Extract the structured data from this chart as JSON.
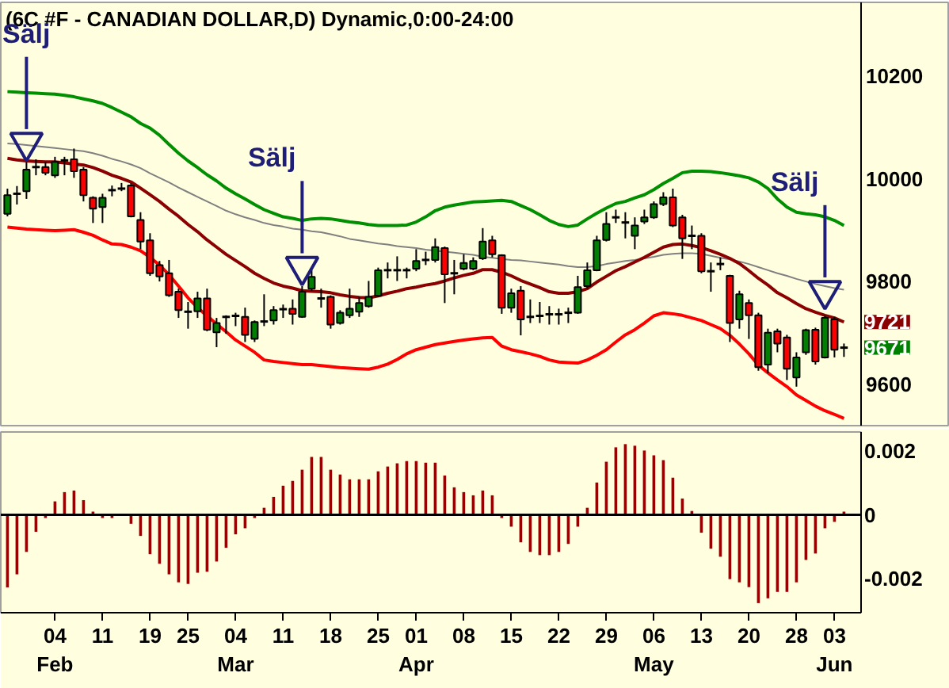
{
  "chart_data": [
    {
      "type": "candlestick",
      "title": "(6C #F - CANADIAN DOLLAR,D) Dynamic,0:00-24:00",
      "categories": [
        null,
        null,
        null,
        null,
        null,
        null,
        null,
        null,
        null,
        null,
        null,
        null,
        null,
        null,
        null,
        null,
        null,
        null,
        null,
        null,
        null,
        null,
        null,
        null,
        null,
        null,
        null,
        null,
        null,
        null,
        null,
        null,
        null,
        null,
        null,
        null,
        null,
        null,
        null,
        null,
        null,
        null,
        null,
        null,
        null,
        null,
        null,
        null,
        null,
        null,
        null,
        null,
        null,
        null,
        null,
        null,
        null,
        null,
        null,
        null,
        null,
        null,
        null,
        null,
        null,
        null,
        null,
        null,
        null,
        null,
        null,
        null,
        null,
        null,
        null,
        null,
        null,
        null,
        null,
        null,
        null,
        null,
        null,
        null,
        null,
        null,
        null,
        null,
        null
      ],
      "ohlc": [
        [
          9932,
          9981,
          9927,
          9968
        ],
        [
          9971,
          9986,
          9950,
          9971
        ],
        [
          9976,
          10033,
          9961,
          10018
        ],
        [
          10023,
          10038,
          10007,
          10023
        ],
        [
          10023,
          10033,
          10007,
          10012
        ],
        [
          10007,
          10043,
          10002,
          10033
        ],
        [
          10036,
          10043,
          10007,
          10036
        ],
        [
          10038,
          10059,
          10002,
          10015
        ],
        [
          10018,
          10023,
          9956,
          9968
        ],
        [
          9963,
          9966,
          9914,
          9942
        ],
        [
          9945,
          9971,
          9914,
          9963
        ],
        [
          9978,
          9987,
          9966,
          9978
        ],
        [
          9981,
          9992,
          9976,
          9981
        ],
        [
          9987,
          9992,
          9925,
          9927
        ],
        [
          9920,
          9935,
          9863,
          9878
        ],
        [
          9880,
          9894,
          9811,
          9816
        ],
        [
          9832,
          9840,
          9800,
          9810
        ],
        [
          9816,
          9842,
          9770,
          9773
        ],
        [
          9780,
          9786,
          9729,
          9744
        ],
        [
          9741,
          9760,
          9708,
          9741
        ],
        [
          9742,
          9780,
          9729,
          9767
        ],
        [
          9767,
          9786,
          9703,
          9706
        ],
        [
          9701,
          9729,
          9672,
          9719
        ],
        [
          9731,
          9734,
          9698,
          9731
        ],
        [
          9733,
          9739,
          9713,
          9733
        ],
        [
          9731,
          9749,
          9682,
          9696
        ],
        [
          9688,
          9724,
          9682,
          9721
        ],
        [
          9722,
          9775,
          9713,
          9722
        ],
        [
          9724,
          9752,
          9716,
          9744
        ],
        [
          9746,
          9755,
          9729,
          9746
        ],
        [
          9747,
          9765,
          9716,
          9737
        ],
        [
          9731,
          9791,
          9729,
          9780
        ],
        [
          9786,
          9822,
          9782,
          9809
        ],
        [
          9767,
          9786,
          9749,
          9767
        ],
        [
          9770,
          9773,
          9708,
          9716
        ],
        [
          9719,
          9744,
          9716,
          9739
        ],
        [
          9734,
          9786,
          9729,
          9747
        ],
        [
          9741,
          9770,
          9731,
          9758
        ],
        [
          9752,
          9801,
          9749,
          9770
        ],
        [
          9772,
          9827,
          9770,
          9822
        ],
        [
          9822,
          9837,
          9806,
          9822
        ],
        [
          9822,
          9849,
          9801,
          9822
        ],
        [
          9822,
          9827,
          9806,
          9822
        ],
        [
          9825,
          9863,
          9820,
          9840
        ],
        [
          9842,
          9858,
          9832,
          9842
        ],
        [
          9842,
          9884,
          9837,
          9867
        ],
        [
          9865,
          9868,
          9758,
          9814
        ],
        [
          9816,
          9842,
          9775,
          9816
        ],
        [
          9825,
          9853,
          9822,
          9836
        ],
        [
          9825,
          9847,
          9822,
          9840
        ],
        [
          9845,
          9904,
          9842,
          9878
        ],
        [
          9880,
          9889,
          9847,
          9853
        ],
        [
          9851,
          9853,
          9737,
          9749
        ],
        [
          9749,
          9786,
          9739,
          9777
        ],
        [
          9782,
          9791,
          9695,
          9726
        ],
        [
          9731,
          9765,
          9719,
          9731
        ],
        [
          9733,
          9760,
          9719,
          9733
        ],
        [
          9736,
          9752,
          9716,
          9736
        ],
        [
          9736,
          9747,
          9716,
          9736
        ],
        [
          9739,
          9749,
          9719,
          9739
        ],
        [
          9739,
          9811,
          9737,
          9789
        ],
        [
          9791,
          9837,
          9786,
          9822
        ],
        [
          9822,
          9889,
          9820,
          9880
        ],
        [
          9881,
          9935,
          9878,
          9912
        ],
        [
          9925,
          9940,
          9914,
          9925
        ],
        [
          9915,
          9935,
          9884,
          9915
        ],
        [
          9889,
          9925,
          9863,
          9909
        ],
        [
          9917,
          9940,
          9912,
          9925
        ],
        [
          9925,
          9956,
          9922,
          9951
        ],
        [
          9951,
          9974,
          9947,
          9964
        ],
        [
          9964,
          9981,
          9906,
          9909
        ],
        [
          9925,
          9930,
          9844,
          9884
        ],
        [
          9889,
          9909,
          9863,
          9889
        ],
        [
          9889,
          9894,
          9816,
          9820
        ],
        [
          9820,
          9837,
          9780,
          9820
        ],
        [
          9834,
          9847,
          9822,
          9834
        ],
        [
          9811,
          9813,
          9682,
          9719
        ],
        [
          9726,
          9782,
          9708,
          9775
        ],
        [
          9758,
          9765,
          9688,
          9734
        ],
        [
          9734,
          9739,
          9626,
          9633
        ],
        [
          9638,
          9708,
          9621,
          9700
        ],
        [
          9703,
          9708,
          9662,
          9679
        ],
        [
          9691,
          9696,
          9608,
          9630
        ],
        [
          9613,
          9662,
          9595,
          9652
        ],
        [
          9662,
          9708,
          9657,
          9705
        ],
        [
          9706,
          9710,
          9638,
          9644
        ],
        [
          9652,
          9734,
          9650,
          9729
        ],
        [
          9726,
          9731,
          9652,
          9667
        ],
        [
          9671,
          9679,
          9653,
          9671
        ]
      ],
      "colors": [
        "#008000",
        "#000000",
        "#008000",
        "#000000",
        "#ff0000",
        "#008000",
        "#000000",
        "#ff0000",
        "#ff0000",
        "#ff0000",
        "#008000",
        "#000000",
        "#000000",
        "#ff0000",
        "#ff0000",
        "#ff0000",
        "#ff0000",
        "#ff0000",
        "#ff0000",
        "#000000",
        "#008000",
        "#ff0000",
        "#008000",
        "#000000",
        "#000000",
        "#ff0000",
        "#008000",
        "#000000",
        "#008000",
        "#000000",
        "#ff0000",
        "#008000",
        "#008000",
        "#000000",
        "#ff0000",
        "#008000",
        "#008000",
        "#008000",
        "#008000",
        "#008000",
        "#000000",
        "#000000",
        "#000000",
        "#008000",
        "#000000",
        "#008000",
        "#ff0000",
        "#000000",
        "#008000",
        "#008000",
        "#008000",
        "#ff0000",
        "#ff0000",
        "#008000",
        "#ff0000",
        "#000000",
        "#000000",
        "#000000",
        "#000000",
        "#000000",
        "#008000",
        "#008000",
        "#008000",
        "#008000",
        "#000000",
        "#000000",
        "#008000",
        "#008000",
        "#008000",
        "#008000",
        "#ff0000",
        "#ff0000",
        "#000000",
        "#ff0000",
        "#000000",
        "#000000",
        "#ff0000",
        "#008000",
        "#ff0000",
        "#ff0000",
        "#008000",
        "#ff0000",
        "#ff0000",
        "#008000",
        "#008000",
        "#ff0000",
        "#008000",
        "#ff0000",
        "#000000"
      ],
      "value_labels": [
        null,
        null,
        null,
        null,
        null,
        null,
        null,
        null,
        null,
        null,
        null,
        null,
        null,
        null,
        null,
        null,
        null,
        null,
        null,
        null,
        null,
        null,
        null,
        null,
        null,
        null,
        null,
        null,
        null,
        null,
        null,
        null,
        null,
        null,
        null,
        null,
        null,
        null,
        null,
        null,
        null,
        null,
        null,
        null,
        null,
        null,
        null,
        null,
        null,
        null,
        null,
        null,
        null,
        null,
        null,
        null,
        null,
        null,
        null,
        null,
        null,
        null,
        null,
        null,
        null,
        null,
        null,
        null,
        null,
        null,
        null,
        null,
        null,
        null,
        null,
        null,
        null,
        null,
        null,
        null,
        null,
        null,
        null,
        null,
        null,
        null,
        null,
        null,
        "9671"
      ],
      "series": [
        {
          "type": "line",
          "color": "#008f00",
          "values": [
            10170,
            10169,
            10168,
            10167,
            10166,
            10165,
            10163,
            10160,
            10156,
            10152,
            10147,
            10139,
            10130,
            10121,
            10108,
            10099,
            10085,
            10067,
            10050,
            10035,
            10022,
            10008,
            9996,
            9982,
            9971,
            9961,
            9950,
            9940,
            9933,
            9926,
            9923,
            9919,
            9922,
            9923,
            9922,
            9919,
            9916,
            9914,
            9911,
            9909,
            9909,
            9909,
            9910,
            9916,
            9926,
            9938,
            9945,
            9949,
            9952,
            9955,
            9956,
            9957,
            9958,
            9956,
            9948,
            9940,
            9930,
            9919,
            9911,
            9907,
            9910,
            9922,
            9933,
            9943,
            9952,
            9956,
            9963,
            9969,
            9979,
            9991,
            10001,
            10012,
            10015,
            10015,
            10014,
            10012,
            10009,
            10006,
            10002,
            9994,
            9981,
            9961,
            9945,
            9935,
            9932,
            9930,
            9926,
            9919,
            9909
          ]
        },
        {
          "type": "line",
          "color": "#808080",
          "values": [
            10069,
            10068,
            10066,
            10064,
            10062,
            10060,
            10058,
            10056,
            10054,
            10050,
            10045,
            10039,
            10034,
            10028,
            10021,
            10011,
            10002,
            9993,
            9983,
            9974,
            9965,
            9956,
            9947,
            9938,
            9931,
            9925,
            9920,
            9914,
            9910,
            9907,
            9903,
            9901,
            9898,
            9896,
            9892,
            9888,
            9883,
            9880,
            9877,
            9874,
            9872,
            9869,
            9867,
            9865,
            9862,
            9860,
            9858,
            9856,
            9854,
            9852,
            9848,
            9846,
            9844,
            9842,
            9841,
            9839,
            9837,
            9835,
            9833,
            9830,
            9828,
            9828,
            9830,
            9834,
            9837,
            9840,
            9842,
            9845,
            9848,
            9852,
            9854,
            9855,
            9855,
            9854,
            9850,
            9846,
            9843,
            9839,
            9834,
            9828,
            9822,
            9816,
            9811,
            9805,
            9800,
            9795,
            9791,
            9787,
            9784
          ]
        },
        {
          "type": "line",
          "color": "#8b0000",
          "values": [
            10040,
            10037,
            10035,
            10034,
            10033,
            10033,
            10031,
            10029,
            10027,
            10022,
            10015,
            10007,
            10001,
            9994,
            9982,
            9969,
            9956,
            9941,
            9927,
            9911,
            9897,
            9881,
            9867,
            9853,
            9841,
            9829,
            9816,
            9806,
            9797,
            9791,
            9787,
            9782,
            9781,
            9780,
            9778,
            9774,
            9771,
            9769,
            9768,
            9772,
            9777,
            9781,
            9786,
            9789,
            9793,
            9796,
            9801,
            9807,
            9812,
            9816,
            9823,
            9823,
            9818,
            9811,
            9802,
            9795,
            9788,
            9780,
            9777,
            9777,
            9780,
            9786,
            9799,
            9810,
            9821,
            9829,
            9838,
            9847,
            9857,
            9867,
            9872,
            9873,
            9870,
            9866,
            9860,
            9853,
            9845,
            9835,
            9821,
            9806,
            9793,
            9778,
            9768,
            9757,
            9747,
            9740,
            9734,
            9729,
            9721
          ],
          "value_labels": [
            null,
            null,
            null,
            null,
            null,
            null,
            null,
            null,
            null,
            null,
            null,
            null,
            null,
            null,
            null,
            null,
            null,
            null,
            null,
            null,
            null,
            null,
            null,
            null,
            null,
            null,
            null,
            null,
            null,
            null,
            null,
            null,
            null,
            null,
            null,
            null,
            null,
            null,
            null,
            null,
            null,
            null,
            null,
            null,
            null,
            null,
            null,
            null,
            null,
            null,
            null,
            null,
            null,
            null,
            null,
            null,
            null,
            null,
            null,
            null,
            null,
            null,
            null,
            null,
            null,
            null,
            null,
            null,
            null,
            null,
            null,
            null,
            null,
            null,
            null,
            null,
            null,
            null,
            null,
            null,
            null,
            null,
            null,
            null,
            null,
            null,
            null,
            null,
            "9721"
          ]
        },
        {
          "type": "line",
          "color": "#ff0000",
          "values": [
            9906,
            9904,
            9902,
            9901,
            9900,
            9899,
            9900,
            9901,
            9896,
            9890,
            9881,
            9873,
            9872,
            9867,
            9860,
            9847,
            9832,
            9813,
            9791,
            9768,
            9749,
            9733,
            9717,
            9702,
            9686,
            9674,
            9662,
            9647,
            9644,
            9642,
            9640,
            9638,
            9638,
            9636,
            9634,
            9632,
            9631,
            9630,
            9629,
            9633,
            9639,
            9648,
            9659,
            9667,
            9672,
            9677,
            9680,
            9683,
            9686,
            9688,
            9690,
            9691,
            9674,
            9667,
            9663,
            9659,
            9654,
            9647,
            9643,
            9642,
            9641,
            9647,
            9656,
            9667,
            9682,
            9696,
            9706,
            9719,
            9733,
            9739,
            9737,
            9734,
            9729,
            9724,
            9716,
            9708,
            9695,
            9678,
            9659,
            9637,
            9622,
            9608,
            9595,
            9579,
            9568,
            9557,
            9548,
            9541,
            9533
          ]
        },
        {
          "type": "scatter",
          "name": "Sälj",
          "color": "#1e1e78",
          "values": [
            null,
            null,
            10071,
            null,
            null,
            null,
            null,
            null,
            null,
            null,
            null,
            null,
            null,
            null,
            null,
            null,
            null,
            null,
            null,
            null,
            null,
            null,
            null,
            null,
            null,
            null,
            null,
            null,
            null,
            null,
            null,
            9829,
            null,
            null,
            null,
            null,
            null,
            null,
            null,
            null,
            null,
            null,
            null,
            null,
            null,
            null,
            null,
            null,
            null,
            null,
            null,
            null,
            null,
            null,
            null,
            null,
            null,
            null,
            null,
            null,
            null,
            null,
            null,
            null,
            null,
            null,
            null,
            null,
            null,
            null,
            null,
            null,
            null,
            null,
            null,
            null,
            null,
            null,
            null,
            null,
            null,
            null,
            null,
            null,
            null,
            null,
            9782,
            null,
            null
          ]
        }
      ],
      "ylim": [
        9519,
        10344
      ],
      "yticks": [
        9600,
        9800,
        10000,
        10200
      ],
      "tick_labels": "y",
      "grid": false
    },
    {
      "type": "bar",
      "color": "#990000",
      "categories": [
        null,
        null,
        null,
        null,
        null,
        "04\nFeb",
        null,
        null,
        null,
        null,
        "11",
        null,
        null,
        null,
        null,
        "19",
        null,
        null,
        null,
        "25",
        null,
        null,
        null,
        null,
        "04\nMar",
        null,
        null,
        null,
        null,
        "11",
        null,
        null,
        null,
        null,
        "18",
        null,
        null,
        null,
        null,
        "25",
        null,
        null,
        null,
        "01\nApr",
        null,
        null,
        null,
        null,
        "08",
        null,
        null,
        null,
        null,
        "15",
        null,
        null,
        null,
        null,
        "22",
        null,
        null,
        null,
        null,
        "29",
        null,
        null,
        null,
        null,
        "06\nMay",
        null,
        null,
        null,
        null,
        "13",
        null,
        null,
        null,
        null,
        "20",
        null,
        null,
        null,
        null,
        "28",
        null,
        null,
        null,
        "03\nJun",
        null
      ],
      "values": [
        -0.00227,
        -0.00186,
        -0.00116,
        -0.00053,
        -0.0001,
        0.00042,
        0.00071,
        0.00076,
        0.00046,
        0.0001,
        -0.0001,
        -0.0001,
        0,
        -0.00028,
        -0.00066,
        -0.00123,
        -0.00153,
        -0.00186,
        -0.00211,
        -0.00216,
        -0.00181,
        -0.00178,
        -0.00146,
        -0.00103,
        -0.00061,
        -0.00042,
        -0.0001,
        0.00022,
        0.00056,
        0.00091,
        0.00106,
        0.00141,
        0.00181,
        0.00181,
        0.00141,
        0.00126,
        0.00111,
        0.00111,
        0.00111,
        0.00136,
        0.00151,
        0.00161,
        0.00168,
        0.00168,
        0.00163,
        0.00163,
        0.00123,
        0.00086,
        0.00071,
        0.00061,
        0.00076,
        0.00061,
        -0.0001,
        -0.00037,
        -0.00086,
        -0.00116,
        -0.00126,
        -0.00126,
        -0.00116,
        -0.00091,
        -0.00037,
        0.00022,
        0.00101,
        0.00166,
        0.00211,
        0.00221,
        0.00216,
        0.00201,
        0.00186,
        0.00171,
        0.00116,
        0.00051,
        0.00012,
        -0.00056,
        -0.00106,
        -0.00131,
        -0.00201,
        -0.00211,
        -0.00226,
        -0.00276,
        -0.00261,
        -0.00241,
        -0.00241,
        -0.00211,
        -0.00141,
        -0.00121,
        -0.00042,
        -0.00022,
        0.0001
      ],
      "ylim": [
        -0.00306,
        0.00259
      ],
      "yticks": [
        -0.002,
        0,
        0.002
      ],
      "grid": false,
      "ref_lines": [
        {
          "axis": "y",
          "value": 0,
          "color": "#000000"
        }
      ]
    }
  ]
}
